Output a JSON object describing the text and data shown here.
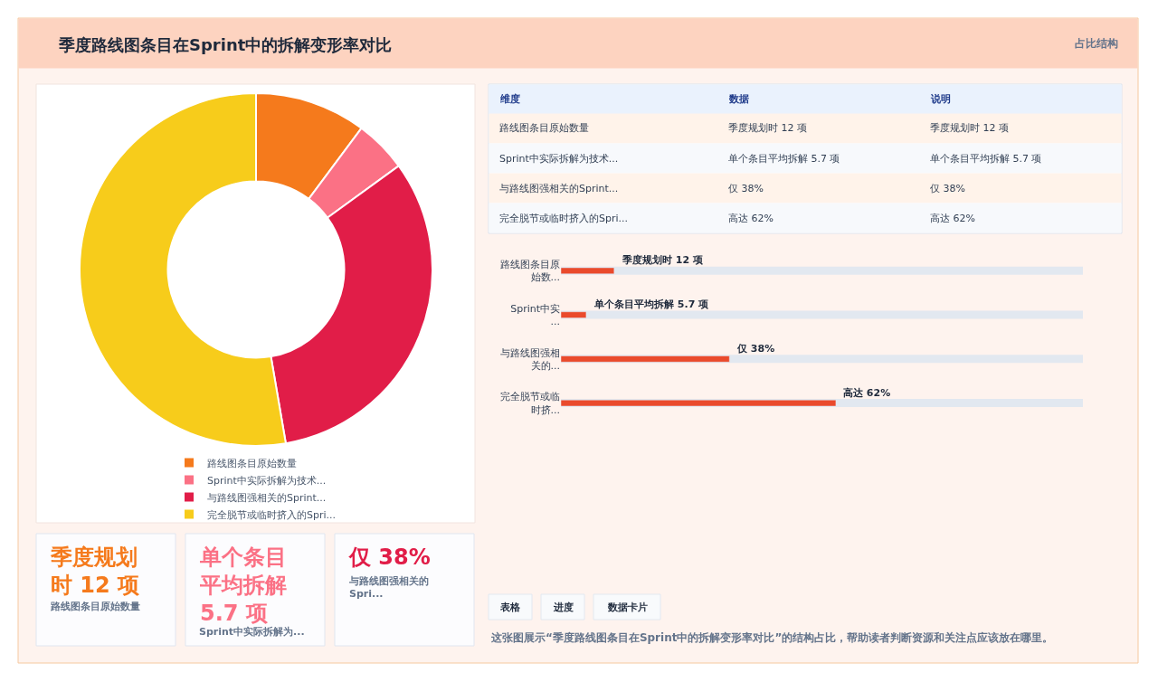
{
  "chart_data": [
    {
      "type": "other",
      "title": "季度路线图条目在Sprint中的拆解变形率对比",
      "annotations": [
        "占比结构"
      ]
    },
    {
      "type": "donut",
      "categories": [
        "路线图条目原始数量",
        "Sprint中实际拆解为技术...",
        "与路线图强相关的Sprint...",
        "完全脱节或临时挤入的Spri..."
      ],
      "values": [
        10.2,
        4.8,
        32.3,
        52.7
      ],
      "colors": [
        "#f57a1c",
        "#fb7185",
        "#e11d48",
        "#f7cc1b"
      ],
      "legend": "bottom"
    },
    {
      "type": "bar",
      "orientation": "horizontal",
      "categories": [
        "路线图条目原始数...",
        "Sprint中实...",
        "与路线图强相关的...",
        "完全脱节或临时挤..."
      ],
      "values": [
        12,
        5.7,
        38,
        62
      ],
      "value_labels": [
        "季度规划时 12 项",
        "单个条目平均拆解 5.7 项",
        "仅 38%",
        "高达 62%"
      ],
      "color": "#ea4a2c",
      "tick_labels": "y"
    },
    {
      "type": "other",
      "annotations": [
        "维度",
        "数据",
        "说明",
        "路线图条目原始数量",
        "季度规划时 12 项",
        "季度规划时 12 项",
        "Sprint中实际拆解为技术...",
        "单个条目平均拆解 5.7 项",
        "单个条目平均拆解 5.7 项",
        "与路线图强相关的Sprint...",
        "仅 38%",
        "仅 38%",
        "完全脱节或临时挤入的Spri...",
        "高达 62%",
        "高达 62%"
      ]
    },
    {
      "type": "other",
      "annotations": [
        "季度规划时 12 项",
        "路线图条目原始数量",
        "单个条目平均拆解 5.7 项",
        "Sprint中实际拆解为...",
        "仅 38%",
        "与路线图强相关的Spri..."
      ]
    },
    {
      "type": "other",
      "annotations": [
        "表格",
        "进度",
        "数据卡片",
        "这张图展示“季度路线图条目在Sprint中的拆解变形率对比”的结构占比，帮助读者判断资源和关注点应该放在哪里。"
      ]
    }
  ]
}
